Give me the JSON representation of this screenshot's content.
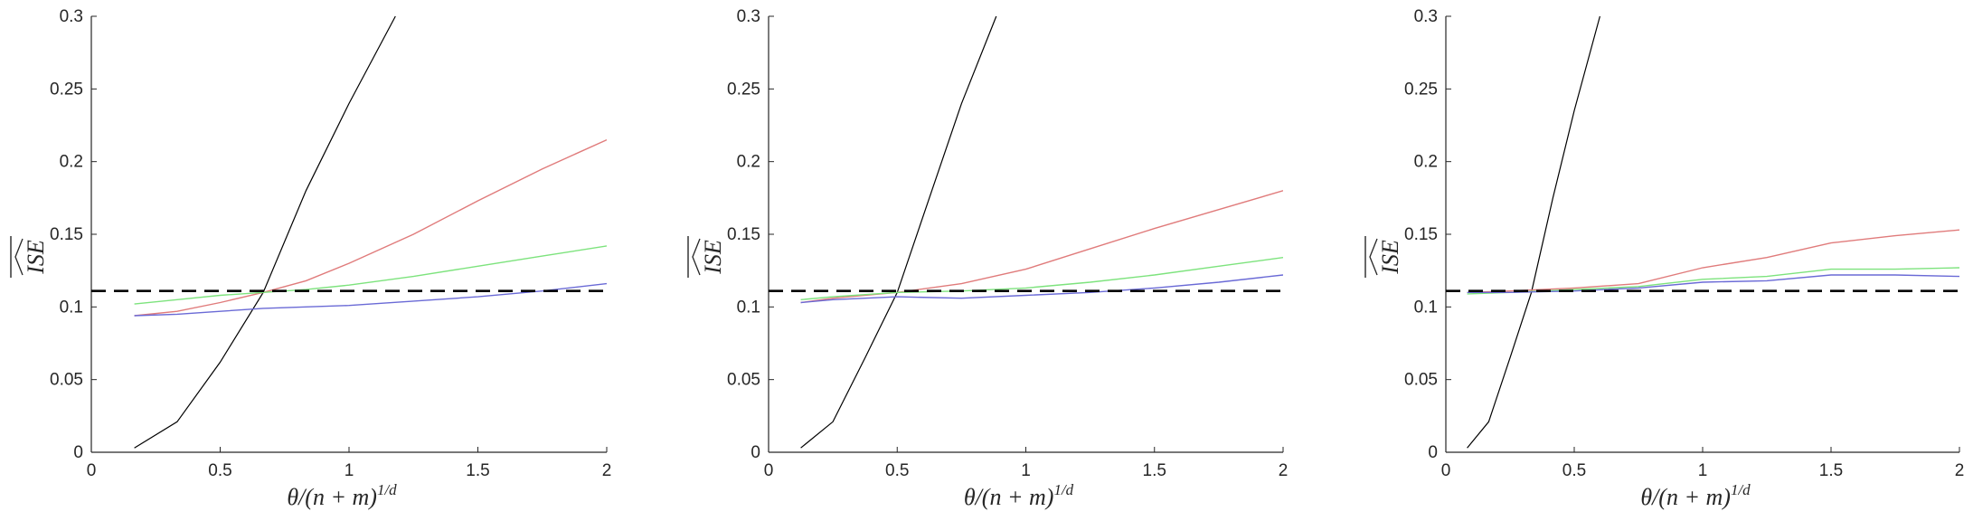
{
  "chart_data": [
    {
      "type": "line",
      "xlabel": "θ/(n+m)^{1/d}",
      "xlabel_main": "θ/(n + m)",
      "xlabel_sup": "1/d",
      "ylabel": "ISE (wide hat, overline)",
      "ylabel_text": "ISE",
      "xlim": [
        0,
        2
      ],
      "ylim": [
        0,
        0.3
      ],
      "xticks": [
        "0",
        "0.5",
        "1",
        "1.5",
        "2"
      ],
      "yticks": [
        "0",
        "0.05",
        "0.1",
        "0.15",
        "0.2",
        "0.25",
        "0.3"
      ],
      "grid": false,
      "reference_line": {
        "style": "dashed",
        "color": "#000000",
        "y": 0.111
      },
      "series": [
        {
          "color": "#000000",
          "x": [
            0.167,
            0.333,
            0.5,
            0.667,
            0.833,
            1.0,
            1.18
          ],
          "y": [
            0.003,
            0.021,
            0.062,
            0.11,
            0.18,
            0.24,
            0.3
          ]
        },
        {
          "color": "#e07b7b",
          "x": [
            0.167,
            0.333,
            0.5,
            0.667,
            0.833,
            1.0,
            1.25,
            1.5,
            1.75,
            2.0
          ],
          "y": [
            0.094,
            0.097,
            0.103,
            0.11,
            0.118,
            0.13,
            0.15,
            0.173,
            0.195,
            0.215
          ]
        },
        {
          "color": "#7de37d",
          "x": [
            0.167,
            0.333,
            0.5,
            0.667,
            0.833,
            1.0,
            1.25,
            1.5,
            1.75,
            2.0
          ],
          "y": [
            0.102,
            0.105,
            0.108,
            0.11,
            0.112,
            0.115,
            0.121,
            0.128,
            0.135,
            0.142
          ]
        },
        {
          "color": "#6a6ad6",
          "x": [
            0.167,
            0.333,
            0.5,
            0.667,
            0.833,
            1.0,
            1.25,
            1.5,
            1.75,
            2.0
          ],
          "y": [
            0.094,
            0.095,
            0.097,
            0.099,
            0.1,
            0.101,
            0.104,
            0.107,
            0.111,
            0.116
          ]
        }
      ]
    },
    {
      "type": "line",
      "xlabel": "θ/(n+m)^{1/d}",
      "xlabel_main": "θ/(n + m)",
      "xlabel_sup": "1/d",
      "ylabel": "ISE (wide hat, overline)",
      "ylabel_text": "ISE",
      "xlim": [
        0,
        2
      ],
      "ylim": [
        0,
        0.3
      ],
      "xticks": [
        "0",
        "0.5",
        "1",
        "1.5",
        "2"
      ],
      "yticks": [
        "0",
        "0.05",
        "0.1",
        "0.15",
        "0.2",
        "0.25",
        "0.3"
      ],
      "grid": false,
      "reference_line": {
        "style": "dashed",
        "color": "#000000",
        "y": 0.111
      },
      "series": [
        {
          "color": "#000000",
          "x": [
            0.125,
            0.25,
            0.375,
            0.5,
            0.625,
            0.75,
            0.885
          ],
          "y": [
            0.003,
            0.021,
            0.065,
            0.11,
            0.175,
            0.24,
            0.3
          ]
        },
        {
          "color": "#e07b7b",
          "x": [
            0.125,
            0.25,
            0.5,
            0.75,
            1.0,
            1.25,
            1.5,
            1.75,
            2.0
          ],
          "y": [
            0.103,
            0.106,
            0.11,
            0.116,
            0.126,
            0.14,
            0.154,
            0.167,
            0.18
          ]
        },
        {
          "color": "#7de37d",
          "x": [
            0.125,
            0.25,
            0.5,
            0.75,
            1.0,
            1.25,
            1.5,
            1.75,
            2.0
          ],
          "y": [
            0.105,
            0.107,
            0.11,
            0.111,
            0.113,
            0.117,
            0.122,
            0.128,
            0.134
          ]
        },
        {
          "color": "#6a6ad6",
          "x": [
            0.125,
            0.25,
            0.5,
            0.75,
            1.0,
            1.25,
            1.5,
            1.75,
            2.0
          ],
          "y": [
            0.103,
            0.105,
            0.107,
            0.106,
            0.108,
            0.11,
            0.113,
            0.117,
            0.122
          ]
        }
      ]
    },
    {
      "type": "line",
      "xlabel": "θ/(n+m)^{1/d}",
      "xlabel_main": "θ/(n + m)",
      "xlabel_sup": "1/d",
      "ylabel": "ISE (wide hat, overline)",
      "ylabel_text": "ISE",
      "xlim": [
        0,
        2
      ],
      "ylim": [
        0,
        0.3
      ],
      "xticks": [
        "0",
        "0.5",
        "1",
        "1.5",
        "2"
      ],
      "yticks": [
        "0",
        "0.05",
        "0.1",
        "0.15",
        "0.2",
        "0.25",
        "0.3"
      ],
      "grid": false,
      "reference_line": {
        "style": "dashed",
        "color": "#000000",
        "y": 0.111
      },
      "series": [
        {
          "color": "#000000",
          "x": [
            0.083,
            0.167,
            0.25,
            0.333,
            0.417,
            0.5,
            0.6
          ],
          "y": [
            0.003,
            0.021,
            0.065,
            0.11,
            0.175,
            0.235,
            0.3
          ]
        },
        {
          "color": "#e07b7b",
          "x": [
            0.083,
            0.25,
            0.5,
            0.75,
            1.0,
            1.25,
            1.5,
            1.75,
            2.0
          ],
          "y": [
            0.11,
            0.111,
            0.113,
            0.116,
            0.127,
            0.134,
            0.144,
            0.149,
            0.153
          ]
        },
        {
          "color": "#7de37d",
          "x": [
            0.083,
            0.25,
            0.5,
            0.75,
            1.0,
            1.25,
            1.5,
            1.75,
            2.0
          ],
          "y": [
            0.109,
            0.11,
            0.112,
            0.114,
            0.119,
            0.121,
            0.126,
            0.126,
            0.127
          ]
        },
        {
          "color": "#6a6ad6",
          "x": [
            0.083,
            0.25,
            0.5,
            0.75,
            1.0,
            1.25,
            1.5,
            1.75,
            2.0
          ],
          "y": [
            0.11,
            0.11,
            0.111,
            0.113,
            0.117,
            0.118,
            0.122,
            0.122,
            0.121
          ]
        }
      ]
    }
  ]
}
